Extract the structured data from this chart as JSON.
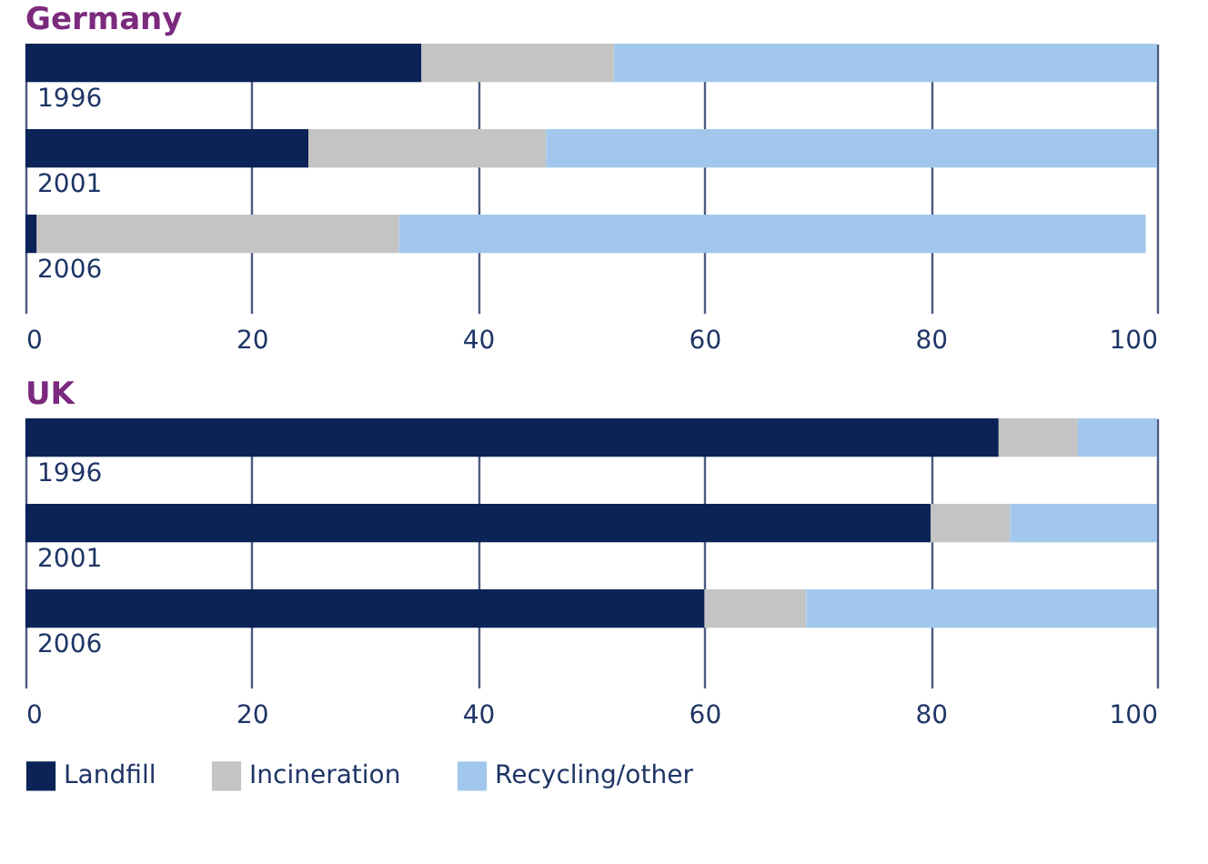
{
  "chart_data": [
    {
      "type": "bar",
      "title": "Germany",
      "stacked": true,
      "orientation": "horizontal",
      "categories": [
        "1996",
        "2001",
        "2006"
      ],
      "series": [
        {
          "name": "Landfill",
          "color": "#0c2357",
          "values": [
            35,
            25,
            1
          ]
        },
        {
          "name": "Incineration",
          "color": "#c4c4c4",
          "values": [
            17,
            21,
            32
          ]
        },
        {
          "name": "Recycling/other",
          "color": "#a1c8ec",
          "values": [
            48,
            54,
            66
          ]
        }
      ],
      "xlim": [
        0,
        100
      ],
      "xticks": [
        0,
        20,
        40,
        60,
        80,
        100
      ],
      "grid": "x",
      "legend": "bottom left"
    },
    {
      "type": "bar",
      "title": "UK",
      "stacked": true,
      "orientation": "horizontal",
      "categories": [
        "1996",
        "2001",
        "2006"
      ],
      "series": [
        {
          "name": "Landfill",
          "color": "#0c2357",
          "values": [
            86,
            80,
            60
          ]
        },
        {
          "name": "Incineration",
          "color": "#c4c4c4",
          "values": [
            7,
            7,
            9
          ]
        },
        {
          "name": "Recycling/other",
          "color": "#a1c8ec",
          "values": [
            7,
            13,
            31
          ]
        }
      ],
      "xlim": [
        0,
        100
      ],
      "xticks": [
        0,
        20,
        40,
        60,
        80,
        100
      ],
      "grid": "x",
      "legend": "bottom left"
    }
  ]
}
